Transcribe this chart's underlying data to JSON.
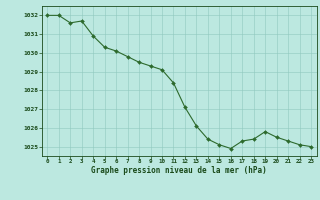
{
  "x": [
    0,
    1,
    2,
    3,
    4,
    5,
    6,
    7,
    8,
    9,
    10,
    11,
    12,
    13,
    14,
    15,
    16,
    17,
    18,
    19,
    20,
    21,
    22,
    23
  ],
  "y": [
    1032.0,
    1032.0,
    1031.6,
    1031.7,
    1030.9,
    1030.3,
    1030.1,
    1029.8,
    1029.5,
    1029.3,
    1029.1,
    1028.4,
    1027.1,
    1026.1,
    1025.4,
    1025.1,
    1024.9,
    1025.3,
    1025.4,
    1025.8,
    1025.5,
    1025.3,
    1025.1,
    1025.0
  ],
  "xlabel": "Graphe pression niveau de la mer (hPa)",
  "ylim_min": 1024.5,
  "ylim_max": 1032.5,
  "yticks": [
    1025,
    1026,
    1027,
    1028,
    1029,
    1030,
    1031,
    1032
  ],
  "xticks": [
    0,
    1,
    2,
    3,
    4,
    5,
    6,
    7,
    8,
    9,
    10,
    11,
    12,
    13,
    14,
    15,
    16,
    17,
    18,
    19,
    20,
    21,
    22,
    23
  ],
  "line_color": "#2d6a2d",
  "marker_color": "#2d6a2d",
  "bg_color": "#bce8e0",
  "grid_color": "#90c8be",
  "text_color": "#1a4a1a",
  "xlabel_color": "#1a4a1a",
  "grid_major_color": "#80b8b0",
  "grid_minor_color": "#a8d8d0"
}
